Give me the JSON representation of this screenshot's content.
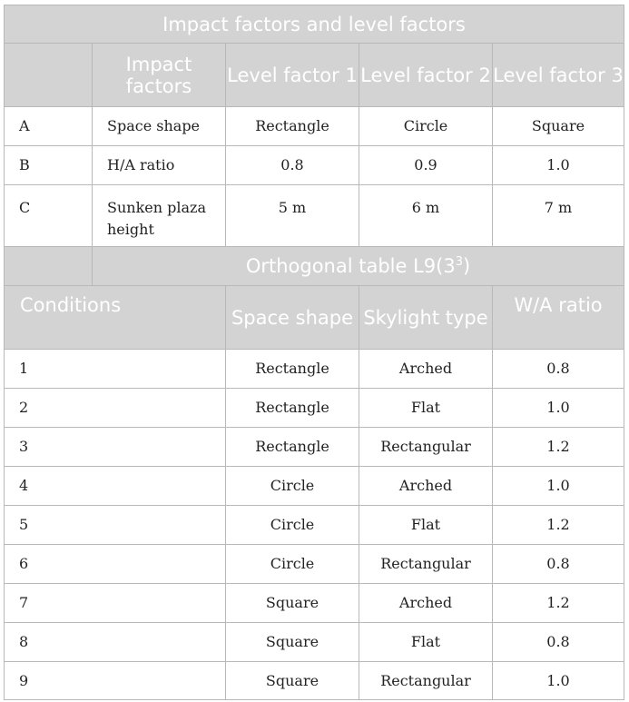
{
  "section1": {
    "title": "Impact factors and level factors",
    "headers": [
      "Impact factors",
      "Level factor 1",
      "Level factor 2",
      "Level factor 3"
    ],
    "rows": [
      {
        "id": "A",
        "factor": "Space shape",
        "l1": "Rectangle",
        "l2": "Circle",
        "l3": "Square"
      },
      {
        "id": "B",
        "factor": "H/A ratio",
        "l1": "0.8",
        "l2": "0.9",
        "l3": "1.0"
      },
      {
        "id": "C",
        "factor": "Sunken plaza height",
        "l1": "5 m",
        "l2": "6 m",
        "l3": "7 m"
      }
    ]
  },
  "section2": {
    "title": "Orthogonal table L9(3",
    "title_sup": "3",
    "title_end": ")",
    "headers": [
      "Conditions",
      "Space shape",
      "Skylight type",
      "W/A ratio"
    ],
    "rows": [
      {
        "n": "1",
        "shape": "Rectangle",
        "skylight": "Arched",
        "ratio": "0.8"
      },
      {
        "n": "2",
        "shape": "Rectangle",
        "skylight": "Flat",
        "ratio": "1.0"
      },
      {
        "n": "3",
        "shape": "Rectangle",
        "skylight": "Rectangular",
        "ratio": "1.2"
      },
      {
        "n": "4",
        "shape": "Circle",
        "skylight": "Arched",
        "ratio": "1.0"
      },
      {
        "n": "5",
        "shape": "Circle",
        "skylight": "Flat",
        "ratio": "1.2"
      },
      {
        "n": "6",
        "shape": "Circle",
        "skylight": "Rectangular",
        "ratio": "0.8"
      },
      {
        "n": "7",
        "shape": "Square",
        "skylight": "Arched",
        "ratio": "1.2"
      },
      {
        "n": "8",
        "shape": "Square",
        "skylight": "Flat",
        "ratio": "0.8"
      },
      {
        "n": "9",
        "shape": "Square",
        "skylight": "Rectangular",
        "ratio": "1.0"
      }
    ]
  }
}
